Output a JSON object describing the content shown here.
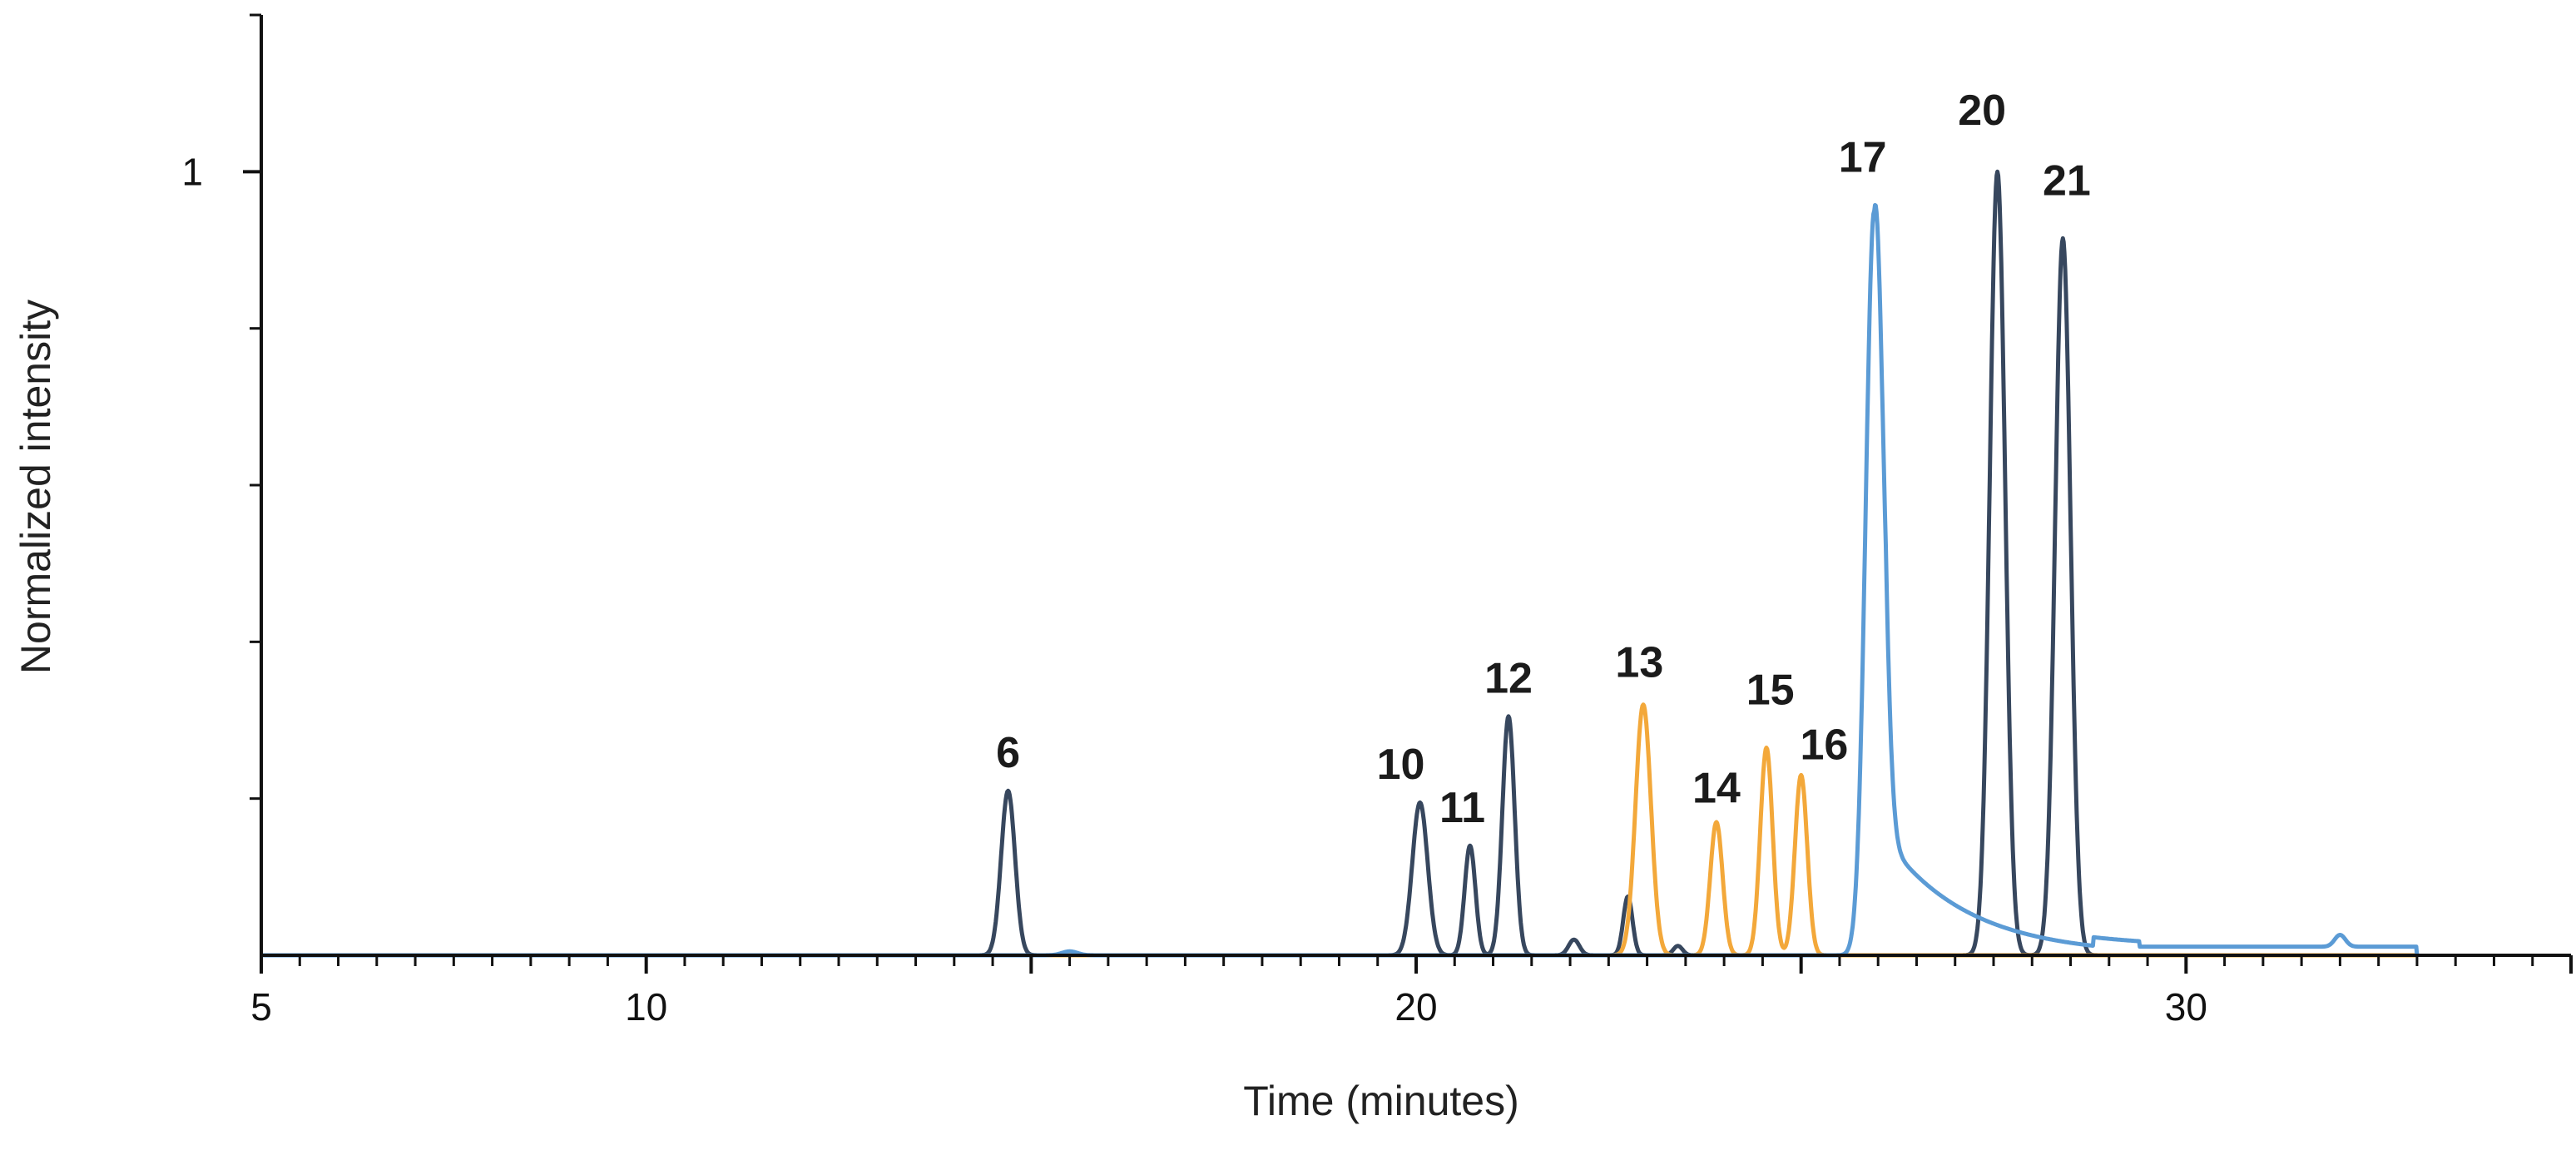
{
  "chart_data": {
    "type": "line",
    "xlabel": "Time (minutes)",
    "ylabel": "Normalized intensity",
    "xlim": [
      5,
      35
    ],
    "ylim": [
      0,
      1.2
    ],
    "x_ticks": [
      5,
      10,
      20,
      30
    ],
    "y_ticks": [
      1
    ],
    "x_minor_step": 0.5,
    "y_minor_step": 0.2,
    "grid": false,
    "legend": "none",
    "colors": {
      "dark": "#37475e",
      "orange": "#f3a83a",
      "blue": "#5b9bd5",
      "axis": "#111111"
    },
    "series": [
      {
        "color": "#37475e",
        "peaks": [
          {
            "t": 14.7,
            "h": 0.21,
            "w": 0.09
          },
          {
            "t": 20.05,
            "h": 0.195,
            "w": 0.1
          },
          {
            "t": 20.7,
            "h": 0.14,
            "w": 0.07
          },
          {
            "t": 21.2,
            "h": 0.305,
            "w": 0.08
          },
          {
            "t": 22.05,
            "h": 0.02,
            "w": 0.07
          },
          {
            "t": 22.75,
            "h": 0.075,
            "w": 0.06
          },
          {
            "t": 23.4,
            "h": 0.012,
            "w": 0.06
          },
          {
            "t": 27.55,
            "h": 1.0,
            "w": 0.1
          },
          {
            "t": 28.4,
            "h": 0.915,
            "w": 0.1
          }
        ]
      },
      {
        "color": "#f3a83a",
        "peaks": [
          {
            "t": 22.95,
            "h": 0.32,
            "w": 0.1
          },
          {
            "t": 23.9,
            "h": 0.17,
            "w": 0.08
          },
          {
            "t": 24.55,
            "h": 0.265,
            "w": 0.08
          },
          {
            "t": 25.0,
            "h": 0.23,
            "w": 0.08
          }
        ]
      },
      {
        "color": "#5b9bd5",
        "peaks": [
          {
            "t": 25.95,
            "h": 0.95,
            "w": 0.11
          },
          {
            "t": 15.5,
            "h": 0.005,
            "w": 0.1
          },
          {
            "t": 32.0,
            "h": 0.015,
            "w": 0.07
          }
        ],
        "tail": {
          "start": 25.95,
          "end": 29.4,
          "amplitude": 0.17
        },
        "baseline": {
          "from": 28.8,
          "to": 33.0,
          "level": 0.011
        }
      }
    ],
    "annotations": [
      {
        "text": "6",
        "x": 14.7,
        "y": 0.24
      },
      {
        "text": "10",
        "x": 19.8,
        "y": 0.225
      },
      {
        "text": "11",
        "x": 20.6,
        "y": 0.17
      },
      {
        "text": "12",
        "x": 21.2,
        "y": 0.335
      },
      {
        "text": "13",
        "x": 22.9,
        "y": 0.355
      },
      {
        "text": "14",
        "x": 23.9,
        "y": 0.195
      },
      {
        "text": "15",
        "x": 24.6,
        "y": 0.32
      },
      {
        "text": "16",
        "x": 25.3,
        "y": 0.25
      },
      {
        "text": "17",
        "x": 25.8,
        "y": 1.0
      },
      {
        "text": "20",
        "x": 27.35,
        "y": 1.06
      },
      {
        "text": "21",
        "x": 28.45,
        "y": 0.97
      }
    ]
  }
}
